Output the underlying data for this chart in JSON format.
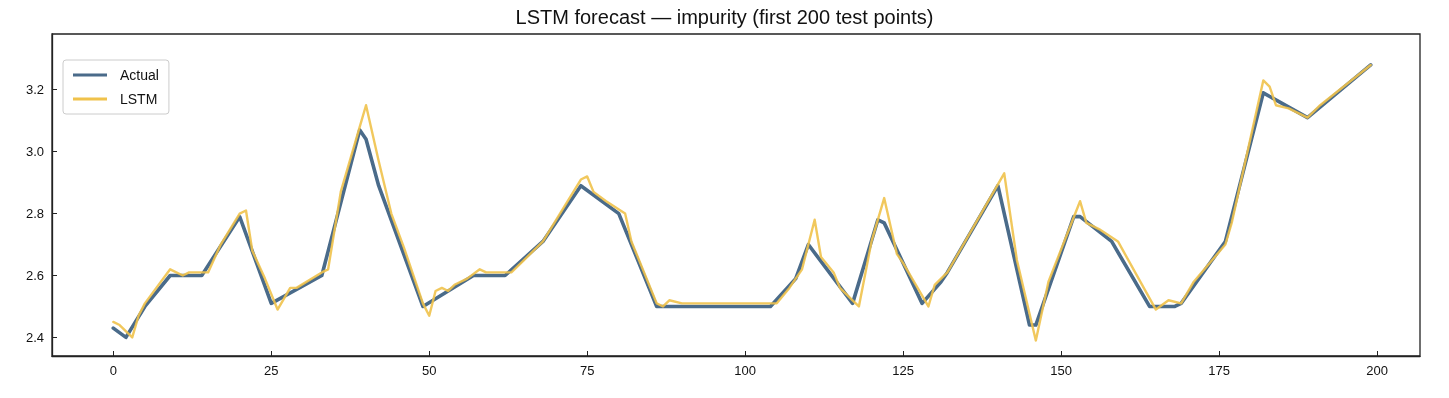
{
  "chart_data": {
    "type": "line",
    "title": "LSTM forecast — impurity (first 200 test points)",
    "xlim": [
      -9.7,
      206.8
    ],
    "xticks": [
      0,
      25,
      50,
      75,
      100,
      125,
      150,
      175,
      200
    ],
    "ylim": [
      2.34,
      3.38
    ],
    "yticks": [
      {
        "value": 2.4,
        "label": "2.4"
      },
      {
        "value": 2.6,
        "label": "2.6"
      },
      {
        "value": 2.8,
        "label": "2.8"
      },
      {
        "value": 3.0,
        "label": "3.0"
      },
      {
        "value": 3.2,
        "label": "3.2"
      }
    ],
    "grid": false,
    "legend": "top left",
    "marker": "none",
    "line_style": "solid",
    "series": [
      {
        "name": "Actual",
        "color": "#4a6b8a",
        "x": [
          0,
          2,
          5,
          9,
          14,
          20,
          25,
          33,
          39,
          40,
          42,
          49,
          57,
          62,
          68,
          74,
          80,
          86,
          104,
          108,
          110,
          117,
          121,
          122,
          128,
          131,
          132,
          140,
          145,
          146,
          152,
          153,
          158,
          164,
          168,
          169,
          176,
          182,
          189,
          199
        ],
        "values": [
          2.43,
          2.4,
          2.5,
          2.6,
          2.6,
          2.79,
          2.51,
          2.6,
          3.07,
          3.04,
          2.89,
          2.5,
          2.6,
          2.6,
          2.71,
          2.89,
          2.8,
          2.5,
          2.5,
          2.59,
          2.7,
          2.51,
          2.78,
          2.77,
          2.51,
          2.58,
          2.61,
          2.89,
          2.44,
          2.44,
          2.79,
          2.79,
          2.71,
          2.5,
          2.5,
          2.51,
          2.71,
          3.19,
          3.11,
          3.28
        ]
      },
      {
        "name": "LSTM",
        "color": "#f0c24b",
        "x": [
          0,
          1,
          3,
          4,
          5,
          9,
          11,
          12,
          15,
          17,
          20,
          21,
          22,
          24,
          26,
          28,
          29,
          33,
          34,
          36,
          39,
          40,
          42,
          44,
          46,
          49,
          50,
          51,
          52,
          53,
          54,
          56,
          58,
          59,
          63,
          65,
          68,
          74,
          75,
          76,
          78,
          81,
          82,
          84,
          86,
          87,
          88,
          90,
          93,
          105,
          107,
          109,
          111,
          112,
          114,
          115,
          117,
          118,
          120,
          122,
          124,
          125,
          129,
          130,
          132,
          141,
          143,
          146,
          148,
          153,
          154,
          156,
          159,
          165,
          167,
          169,
          171,
          176,
          177,
          182,
          183,
          184,
          186,
          189,
          191,
          199
        ],
        "values": [
          2.45,
          2.44,
          2.4,
          2.47,
          2.51,
          2.62,
          2.6,
          2.61,
          2.61,
          2.7,
          2.8,
          2.81,
          2.68,
          2.59,
          2.49,
          2.56,
          2.56,
          2.61,
          2.62,
          2.87,
          3.08,
          3.15,
          2.97,
          2.8,
          2.69,
          2.51,
          2.47,
          2.55,
          2.56,
          2.55,
          2.57,
          2.59,
          2.62,
          2.61,
          2.61,
          2.65,
          2.71,
          2.91,
          2.92,
          2.87,
          2.84,
          2.8,
          2.71,
          2.61,
          2.51,
          2.5,
          2.52,
          2.51,
          2.51,
          2.51,
          2.56,
          2.62,
          2.78,
          2.66,
          2.61,
          2.56,
          2.52,
          2.5,
          2.71,
          2.85,
          2.67,
          2.64,
          2.5,
          2.57,
          2.61,
          2.93,
          2.65,
          2.39,
          2.58,
          2.84,
          2.77,
          2.75,
          2.71,
          2.49,
          2.52,
          2.51,
          2.58,
          2.7,
          2.77,
          3.23,
          3.21,
          3.15,
          3.14,
          3.11,
          3.15,
          3.28
        ]
      }
    ]
  }
}
